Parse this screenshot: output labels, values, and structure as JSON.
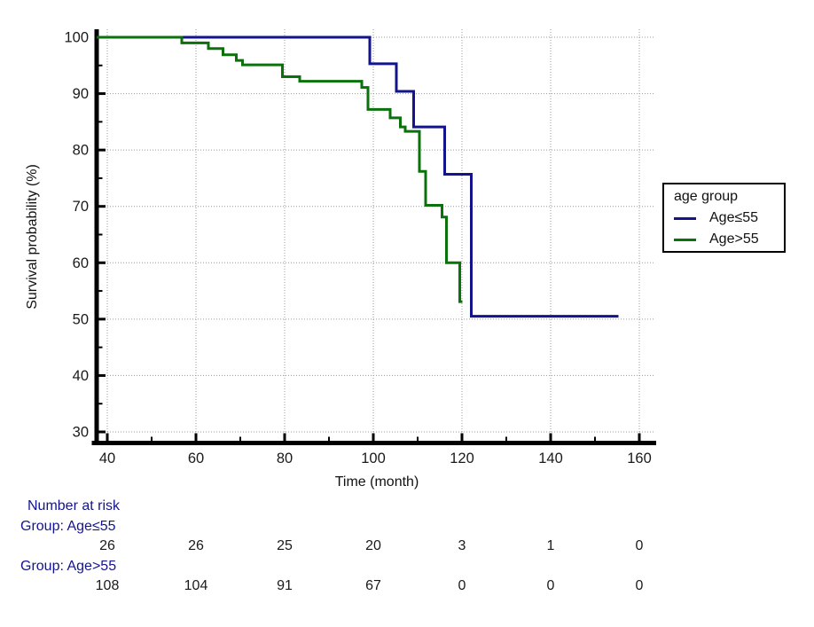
{
  "chart_data": {
    "type": "line",
    "subtype": "kaplan-meier-step",
    "title": "",
    "x_title": "Time (month)",
    "y_title": "Survival probability (%)",
    "xlim": [
      40,
      160
    ],
    "ylim": [
      30,
      100
    ],
    "x_ticks": [
      40,
      60,
      80,
      100,
      120,
      140,
      160
    ],
    "x_minor_ticks": [
      50,
      70,
      90,
      110,
      130,
      150
    ],
    "y_ticks": [
      30,
      40,
      50,
      60,
      70,
      80,
      90,
      100
    ],
    "y_minor_ticks": [
      35,
      45,
      55,
      65,
      75,
      85,
      95
    ],
    "grid": "dotted-on-major-ticks",
    "grid_color": "#999999",
    "axis_color": "#000000",
    "legend": {
      "title": "age group",
      "position": "outside-right"
    },
    "series": [
      {
        "name": "Age≤55",
        "color": "#13138b",
        "start_value": 100,
        "points": [
          [
            37.6,
            100
          ],
          [
            99.2,
            95.3
          ],
          [
            105.2,
            90.4
          ],
          [
            109.1,
            84.1
          ],
          [
            116.1,
            75.7
          ],
          [
            122.1,
            50.5
          ]
        ],
        "end_t": 155.3
      },
      {
        "name": "Age>55",
        "color": "#0b710b",
        "start_value": 100,
        "points": [
          [
            37.6,
            100
          ],
          [
            56.8,
            99.0
          ],
          [
            62.8,
            98.0
          ],
          [
            66.1,
            96.9
          ],
          [
            69.1,
            95.9
          ],
          [
            70.5,
            95.1
          ],
          [
            79.5,
            93.0
          ],
          [
            83.4,
            92.2
          ],
          [
            97.4,
            91.1
          ],
          [
            98.8,
            87.2
          ],
          [
            103.8,
            85.7
          ],
          [
            106.1,
            84.1
          ],
          [
            107.2,
            83.3
          ],
          [
            110.4,
            76.2
          ],
          [
            111.8,
            70.2
          ],
          [
            115.5,
            68.1
          ],
          [
            116.5,
            60.0
          ],
          [
            119.5,
            53.1
          ]
        ],
        "end_t": 120.1
      }
    ],
    "risk_table": {
      "header": "Number at risk",
      "times": [
        40,
        60,
        80,
        100,
        120,
        140,
        160
      ],
      "groups": [
        {
          "label": "Group: Age≤55",
          "counts": [
            26,
            26,
            25,
            20,
            3,
            1,
            0
          ]
        },
        {
          "label": "Group: Age>55",
          "counts": [
            108,
            104,
            91,
            67,
            0,
            0,
            0
          ]
        }
      ],
      "label_color": "#14148c"
    }
  }
}
